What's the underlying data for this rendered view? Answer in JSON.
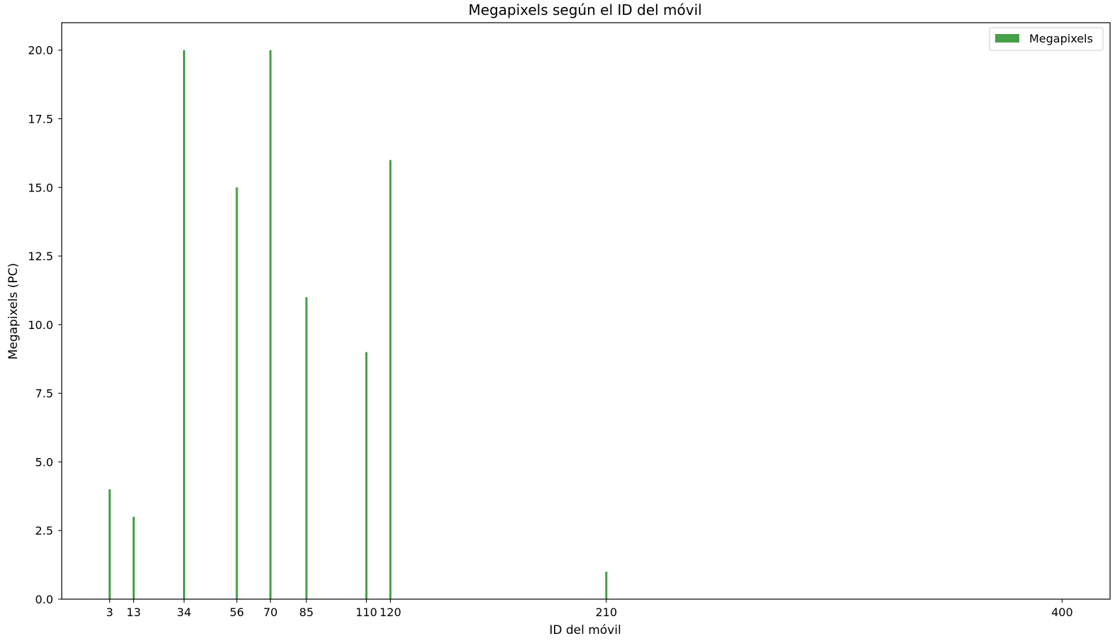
{
  "chart_data": {
    "type": "bar",
    "title": "Megapixels según el ID del móvil",
    "xlabel": "ID del móvil",
    "ylabel": "Megapixels (PC)",
    "x": [
      3,
      13,
      34,
      56,
      70,
      85,
      110,
      120,
      210,
      400
    ],
    "series": [
      {
        "name": "Megapixels",
        "values": [
          4,
          3,
          20,
          15,
          20,
          11,
          9,
          16,
          1,
          0
        ]
      }
    ],
    "x_tick_labels": [
      "3",
      "13",
      "34",
      "56",
      "70",
      "85",
      "110",
      "120",
      "210",
      "400"
    ],
    "y_tick_labels": [
      "0.0",
      "2.5",
      "5.0",
      "7.5",
      "10.0",
      "12.5",
      "15.0",
      "17.5",
      "20.0"
    ],
    "xlim": [
      -17,
      420
    ],
    "ylim": [
      0,
      21
    ],
    "grid": false,
    "legend_position": "upper right",
    "bar_color": "#46a046"
  }
}
